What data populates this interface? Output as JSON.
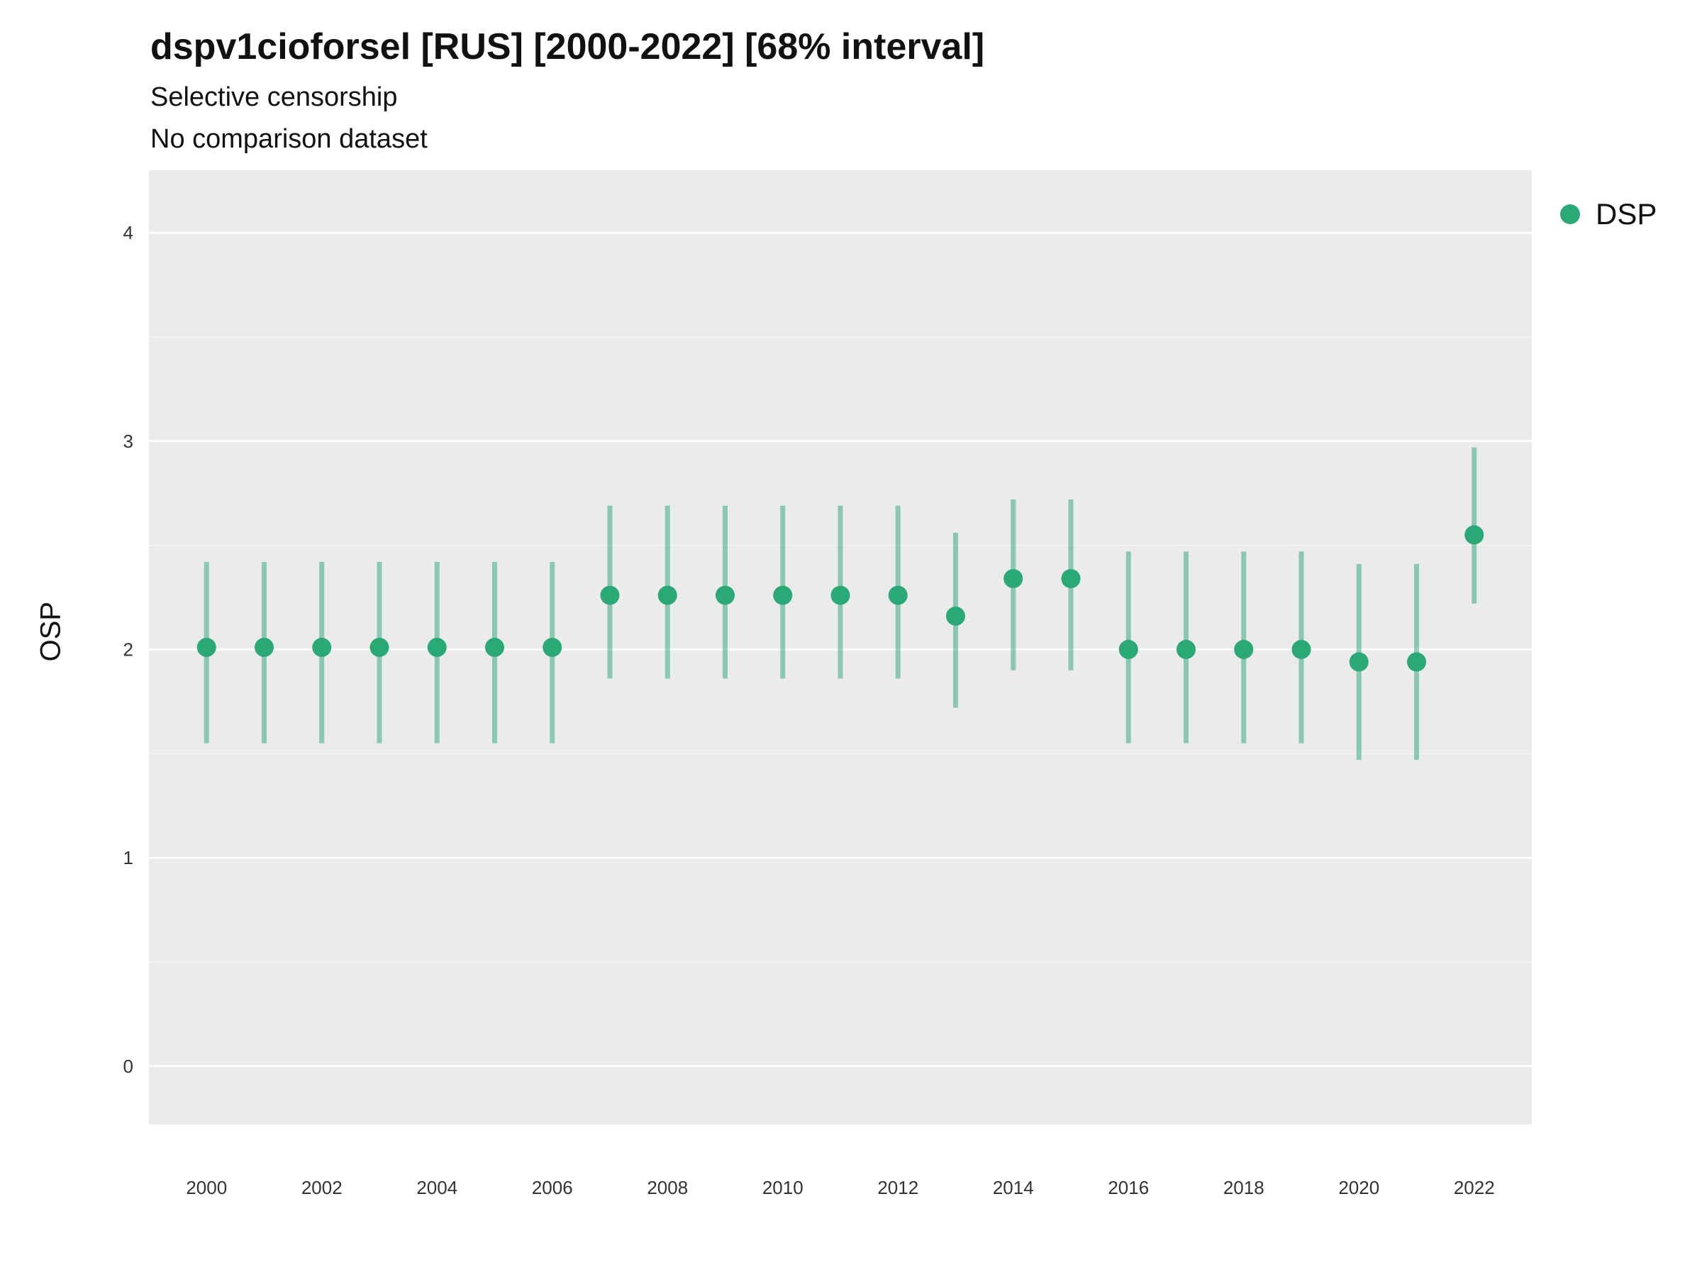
{
  "title": "dspv1cioforsel [RUS] [2000-2022] [68% interval]",
  "subtitle1": "Selective censorship",
  "subtitle2": "No comparison dataset",
  "legend": {
    "label": "DSP"
  },
  "colors": {
    "point": "#2aa876",
    "interval_opacity": 0.5,
    "panel": "#ebebeb",
    "grid_major": "#ffffff",
    "grid_minor": "#f5f5f5",
    "text": "#333333"
  },
  "chart_data": {
    "type": "scatter",
    "title": "dspv1cioforsel [RUS] [2000-2022] [68% interval]",
    "subtitle": "Selective censorship / No comparison dataset",
    "xlabel": "",
    "ylabel": "OSP",
    "xlim": [
      1999,
      2023
    ],
    "ylim": [
      -0.28,
      4.3
    ],
    "x_ticks": [
      2000,
      2002,
      2004,
      2006,
      2008,
      2010,
      2012,
      2014,
      2016,
      2018,
      2020,
      2022
    ],
    "y_ticks": [
      0,
      1,
      2,
      3,
      4
    ],
    "grid": "horizontal-only",
    "legend_position": "right",
    "interval_label": "68% interval",
    "series": [
      {
        "name": "DSP",
        "x": [
          2000,
          2001,
          2002,
          2003,
          2004,
          2005,
          2006,
          2007,
          2008,
          2009,
          2010,
          2011,
          2012,
          2013,
          2014,
          2015,
          2016,
          2017,
          2018,
          2019,
          2020,
          2021,
          2022
        ],
        "values": [
          2.01,
          2.01,
          2.01,
          2.01,
          2.01,
          2.01,
          2.01,
          2.26,
          2.26,
          2.26,
          2.26,
          2.26,
          2.26,
          2.16,
          2.34,
          2.34,
          2.0,
          2.0,
          2.0,
          2.0,
          1.94,
          1.94,
          2.55
        ],
        "lower": [
          1.55,
          1.55,
          1.55,
          1.55,
          1.55,
          1.55,
          1.55,
          1.86,
          1.86,
          1.86,
          1.86,
          1.86,
          1.86,
          1.72,
          1.9,
          1.9,
          1.55,
          1.55,
          1.55,
          1.55,
          1.47,
          1.47,
          2.22
        ],
        "upper": [
          2.42,
          2.42,
          2.42,
          2.42,
          2.42,
          2.42,
          2.42,
          2.69,
          2.69,
          2.69,
          2.69,
          2.69,
          2.69,
          2.56,
          2.72,
          2.72,
          2.47,
          2.47,
          2.47,
          2.47,
          2.41,
          2.41,
          2.97
        ]
      }
    ]
  }
}
